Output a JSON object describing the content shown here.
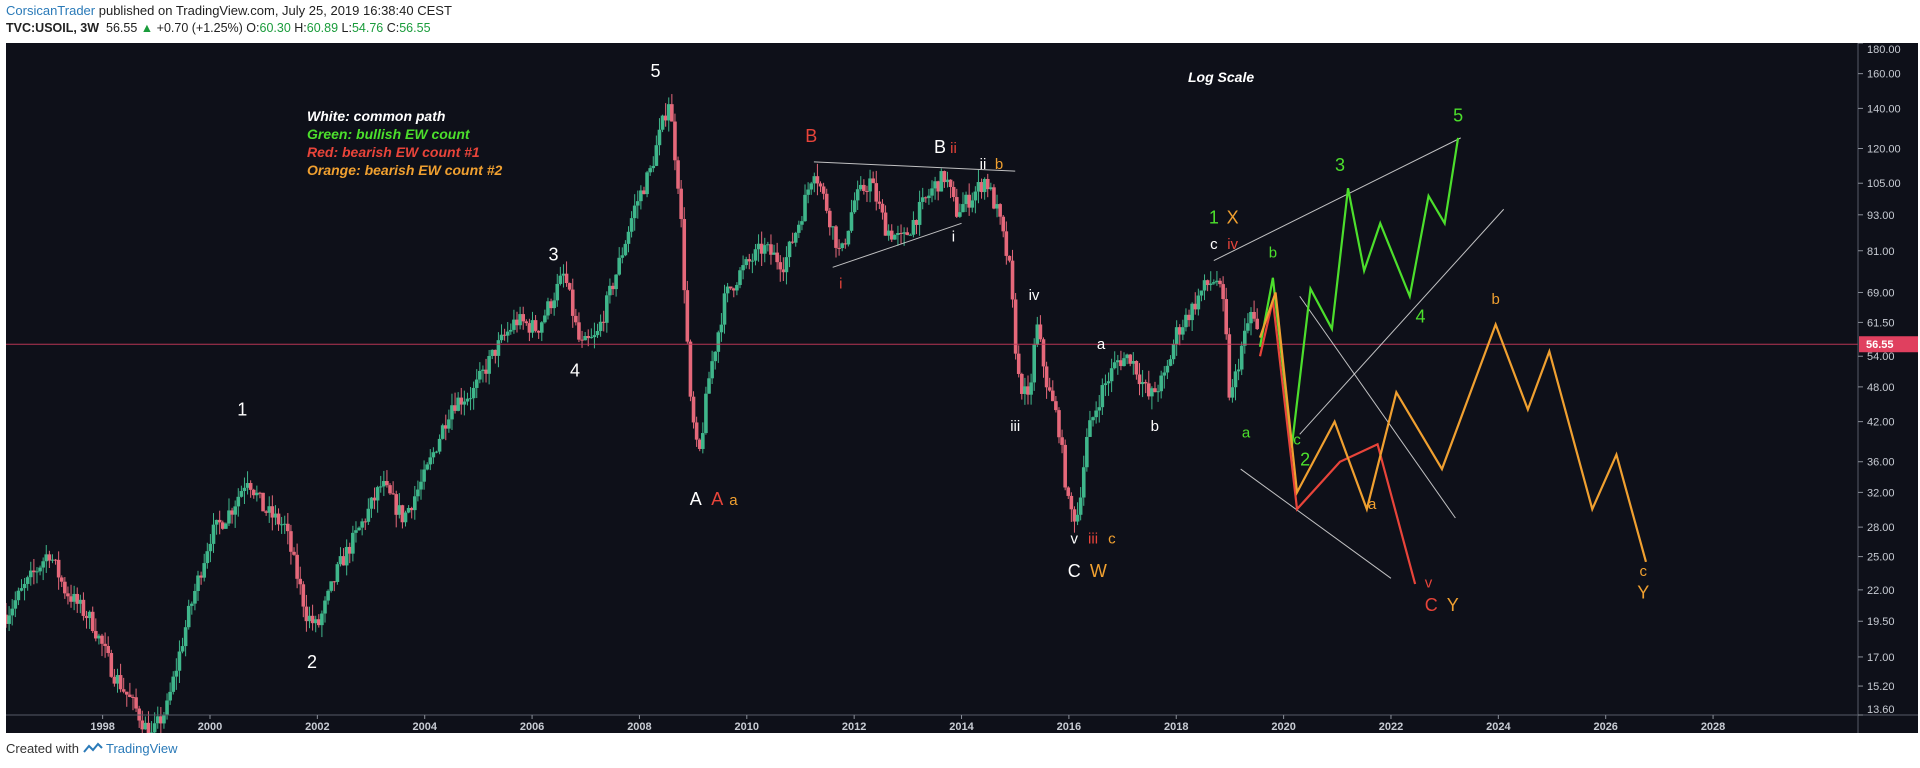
{
  "header": {
    "author": "CorsicanTrader",
    "published_text": "published on TradingView.com, July 25, 2019 16:38:40 CEST",
    "symbol": "TVC:USOIL, 3W",
    "last_price": "56.55",
    "change_arrow": "▲",
    "change": "+0.70 (+1.25%)",
    "open_label": "O:",
    "open": "60.30",
    "high_label": "H:",
    "high": "60.89",
    "low_label": "L:",
    "low": "54.76",
    "close_label": "C:",
    "close": "56.55"
  },
  "footer": {
    "created_with": "Created with",
    "brand": "TradingView"
  },
  "colors": {
    "background": "#0e1019",
    "bull_candle": "#3fb68b",
    "bear_candle": "#e5687a",
    "white": "#ffffff",
    "green": "#4cdf2c",
    "red": "#e8443a",
    "orange": "#f0a030",
    "price_line": "#c9395a"
  },
  "chart_data": {
    "type": "candlestick",
    "interval": "3W",
    "y_scale": "log",
    "ylim": [
      13.6,
      180
    ],
    "xlim": [
      1996.2,
      2030.7
    ],
    "y_ticks": [
      13.6,
      15.2,
      17.0,
      19.5,
      22.0,
      25.0,
      28.0,
      32.0,
      36.0,
      42.0,
      48.0,
      54.0,
      61.5,
      69.0,
      81.0,
      93.0,
      105.0,
      120.0,
      140.0,
      160.0,
      180.0
    ],
    "y_tick_labels": [
      "13.60",
      "15.20",
      "17.00",
      "19.50",
      "22.00",
      "25.00",
      "28.00",
      "32.00",
      "36.00",
      "42.00",
      "48.00",
      "54.00",
      "61.50",
      "69.00",
      "81.00",
      "93.00",
      "105.00",
      "120.00",
      "140.00",
      "160.00",
      "180.00"
    ],
    "x_ticks": [
      1998,
      2000,
      2002,
      2004,
      2006,
      2008,
      2010,
      2012,
      2014,
      2016,
      2018,
      2020,
      2022,
      2024,
      2026,
      2028
    ],
    "x_tick_labels": [
      "1998",
      "2000",
      "2002",
      "2004",
      "2006",
      "2008",
      "2010",
      "2012",
      "2014",
      "2016",
      "2018",
      "2020",
      "2022",
      "2024",
      "2026",
      "2028"
    ],
    "last_price_label": "56.55",
    "last_price": 56.55,
    "scale_note": "Log Scale",
    "legend": [
      {
        "text": "White: common path",
        "color": "#ffffff"
      },
      {
        "text": "Green: bullish EW count",
        "color": "#4cdf2c"
      },
      {
        "text": "Red: bearish EW count #1",
        "color": "#e8443a"
      },
      {
        "text": "Orange: bearish EW count #2",
        "color": "#f0a030"
      }
    ],
    "price_path": [
      [
        1996.2,
        20
      ],
      [
        1996.8,
        24
      ],
      [
        1997.0,
        25.5
      ],
      [
        1997.3,
        22
      ],
      [
        1997.8,
        19.5
      ],
      [
        1998.2,
        16
      ],
      [
        1998.6,
        14
      ],
      [
        1998.9,
        12.5
      ],
      [
        1999.2,
        14
      ],
      [
        1999.6,
        20
      ],
      [
        2000.0,
        27
      ],
      [
        2000.4,
        30
      ],
      [
        2000.7,
        34
      ],
      [
        2001.0,
        30
      ],
      [
        2001.4,
        28
      ],
      [
        2001.8,
        20
      ],
      [
        2002.0,
        19
      ],
      [
        2002.4,
        24
      ],
      [
        2002.8,
        28
      ],
      [
        2003.2,
        33
      ],
      [
        2003.6,
        29
      ],
      [
        2004.0,
        34
      ],
      [
        2004.5,
        45
      ],
      [
        2004.9,
        47
      ],
      [
        2005.3,
        55
      ],
      [
        2005.7,
        62
      ],
      [
        2006.1,
        60
      ],
      [
        2006.6,
        74
      ],
      [
        2006.9,
        56
      ],
      [
        2007.2,
        58
      ],
      [
        2007.6,
        76
      ],
      [
        2007.9,
        95
      ],
      [
        2008.2,
        110
      ],
      [
        2008.55,
        145
      ],
      [
        2008.75,
        100
      ],
      [
        2008.95,
        45
      ],
      [
        2009.1,
        36
      ],
      [
        2009.3,
        50
      ],
      [
        2009.6,
        68
      ],
      [
        2009.9,
        75
      ],
      [
        2010.3,
        82
      ],
      [
        2010.7,
        77
      ],
      [
        2011.0,
        92
      ],
      [
        2011.25,
        112
      ],
      [
        2011.5,
        95
      ],
      [
        2011.75,
        79
      ],
      [
        2012.0,
        98
      ],
      [
        2012.3,
        106
      ],
      [
        2012.6,
        88
      ],
      [
        2012.9,
        84
      ],
      [
        2013.2,
        94
      ],
      [
        2013.5,
        104
      ],
      [
        2013.7,
        108
      ],
      [
        2013.9,
        94
      ],
      [
        2014.2,
        100
      ],
      [
        2014.45,
        107
      ],
      [
        2014.7,
        92
      ],
      [
        2014.9,
        75
      ],
      [
        2015.05,
        50
      ],
      [
        2015.25,
        45
      ],
      [
        2015.4,
        61
      ],
      [
        2015.6,
        48
      ],
      [
        2015.8,
        42
      ],
      [
        2016.0,
        30
      ],
      [
        2016.15,
        29
      ],
      [
        2016.35,
        40
      ],
      [
        2016.6,
        47
      ],
      [
        2016.9,
        53
      ],
      [
        2017.15,
        54
      ],
      [
        2017.5,
        46
      ],
      [
        2017.8,
        50
      ],
      [
        2018.0,
        59
      ],
      [
        2018.3,
        65
      ],
      [
        2018.5,
        70
      ],
      [
        2018.75,
        73
      ],
      [
        2018.9,
        64
      ],
      [
        2019.0,
        45
      ],
      [
        2019.2,
        55
      ],
      [
        2019.4,
        64
      ],
      [
        2019.56,
        56.55
      ]
    ],
    "projections": [
      {
        "color": "#4cdf2c",
        "points": [
          [
            2019.56,
            56
          ],
          [
            2019.8,
            73
          ],
          [
            2020.15,
            38
          ],
          [
            2020.5,
            70
          ],
          [
            2020.9,
            60
          ],
          [
            2021.2,
            103
          ],
          [
            2021.5,
            75
          ],
          [
            2021.8,
            90
          ],
          [
            2022.35,
            68
          ],
          [
            2022.7,
            100
          ],
          [
            2023.0,
            90
          ],
          [
            2023.25,
            125
          ]
        ]
      },
      {
        "color": "#e8443a",
        "points": [
          [
            2019.56,
            54
          ],
          [
            2019.8,
            67
          ],
          [
            2020.25,
            30
          ],
          [
            2021.05,
            36
          ],
          [
            2021.75,
            38.5
          ],
          [
            2022.45,
            22.5
          ]
        ]
      },
      {
        "color": "#f0a030",
        "points": [
          [
            2019.56,
            58
          ],
          [
            2019.85,
            69
          ],
          [
            2020.25,
            32
          ],
          [
            2020.95,
            42
          ],
          [
            2021.55,
            30
          ],
          [
            2022.1,
            47
          ],
          [
            2022.95,
            35
          ],
          [
            2023.95,
            61
          ],
          [
            2024.55,
            44
          ],
          [
            2024.95,
            55
          ],
          [
            2025.75,
            30
          ],
          [
            2026.2,
            37
          ],
          [
            2026.75,
            24.5
          ]
        ]
      }
    ],
    "trend_lines": [
      {
        "color": "#e0e0e0",
        "points": [
          [
            2011.25,
            114
          ],
          [
            2015.0,
            110
          ]
        ]
      },
      {
        "color": "#e0e0e0",
        "points": [
          [
            2011.6,
            76
          ],
          [
            2014.0,
            90
          ]
        ]
      },
      {
        "color": "#e0e0e0",
        "points": [
          [
            2018.7,
            78
          ],
          [
            2023.3,
            125
          ]
        ]
      },
      {
        "color": "#e0e0e0",
        "points": [
          [
            2020.3,
            40
          ],
          [
            2024.1,
            95
          ]
        ]
      },
      {
        "color": "#e0e0e0",
        "points": [
          [
            2019.2,
            35
          ],
          [
            2022.0,
            23
          ]
        ]
      },
      {
        "color": "#e0e0e0",
        "points": [
          [
            2020.3,
            68
          ],
          [
            2023.2,
            29
          ]
        ]
      }
    ],
    "annotations": [
      {
        "text": "1",
        "color": "#ffffff",
        "x": 2000.6,
        "y": 43,
        "size": 18
      },
      {
        "text": "2",
        "color": "#ffffff",
        "x": 2001.9,
        "y": 16.3,
        "size": 18
      },
      {
        "text": "3",
        "color": "#ffffff",
        "x": 2006.4,
        "y": 78,
        "size": 18
      },
      {
        "text": "4",
        "color": "#ffffff",
        "x": 2006.8,
        "y": 50,
        "size": 18
      },
      {
        "text": "5",
        "color": "#ffffff",
        "x": 2008.3,
        "y": 158,
        "size": 18
      },
      {
        "text": "A",
        "color": "#ffffff",
        "x": 2009.05,
        "y": 30.5,
        "size": 18
      },
      {
        "text": "A",
        "color": "#e8443a",
        "x": 2009.45,
        "y": 30.5,
        "size": 18
      },
      {
        "text": "a",
        "color": "#f0a030",
        "x": 2009.75,
        "y": 30.5,
        "size": 15
      },
      {
        "text": "B",
        "color": "#e8443a",
        "x": 2011.2,
        "y": 123,
        "size": 18
      },
      {
        "text": "i",
        "color": "#e8443a",
        "x": 2011.75,
        "y": 70,
        "size": 15
      },
      {
        "text": "B",
        "color": "#ffffff",
        "x": 2013.6,
        "y": 118,
        "size": 18
      },
      {
        "text": "ii",
        "color": "#e8443a",
        "x": 2013.85,
        "y": 118,
        "size": 15
      },
      {
        "text": "ii",
        "color": "#ffffff",
        "x": 2014.4,
        "y": 111,
        "size": 15
      },
      {
        "text": "b",
        "color": "#f0a030",
        "x": 2014.7,
        "y": 111,
        "size": 15
      },
      {
        "text": "i",
        "color": "#ffffff",
        "x": 2013.85,
        "y": 84,
        "size": 15
      },
      {
        "text": "iv",
        "color": "#ffffff",
        "x": 2015.35,
        "y": 67,
        "size": 15
      },
      {
        "text": "iii",
        "color": "#ffffff",
        "x": 2015.0,
        "y": 40.5,
        "size": 15
      },
      {
        "text": "v",
        "color": "#ffffff",
        "x": 2016.1,
        "y": 26.3,
        "size": 15
      },
      {
        "text": "iii",
        "color": "#e8443a",
        "x": 2016.45,
        "y": 26.3,
        "size": 15
      },
      {
        "text": "c",
        "color": "#f0a030",
        "x": 2016.8,
        "y": 26.3,
        "size": 15
      },
      {
        "text": "C",
        "color": "#ffffff",
        "x": 2016.1,
        "y": 23.1,
        "size": 18
      },
      {
        "text": "W",
        "color": "#f0a030",
        "x": 2016.55,
        "y": 23.1,
        "size": 18
      },
      {
        "text": "a",
        "color": "#ffffff",
        "x": 2016.6,
        "y": 55.5,
        "size": 15
      },
      {
        "text": "b",
        "color": "#ffffff",
        "x": 2017.6,
        "y": 40.5,
        "size": 15
      },
      {
        "text": "1",
        "color": "#4cdf2c",
        "x": 2018.7,
        "y": 90,
        "size": 18
      },
      {
        "text": "X",
        "color": "#f0a030",
        "x": 2019.05,
        "y": 90,
        "size": 18
      },
      {
        "text": "c",
        "color": "#ffffff",
        "x": 2018.7,
        "y": 81.5,
        "size": 15
      },
      {
        "text": "iv",
        "color": "#e8443a",
        "x": 2019.05,
        "y": 81.5,
        "size": 15
      },
      {
        "text": "b",
        "color": "#4cdf2c",
        "x": 2019.8,
        "y": 79,
        "size": 15
      },
      {
        "text": "a",
        "color": "#4cdf2c",
        "x": 2019.3,
        "y": 39.5,
        "size": 15
      },
      {
        "text": "c",
        "color": "#4cdf2c",
        "x": 2020.25,
        "y": 38.5,
        "size": 15
      },
      {
        "text": "2",
        "color": "#4cdf2c",
        "x": 2020.4,
        "y": 35.5,
        "size": 18
      },
      {
        "text": "3",
        "color": "#4cdf2c",
        "x": 2021.05,
        "y": 110,
        "size": 18
      },
      {
        "text": "4",
        "color": "#4cdf2c",
        "x": 2022.55,
        "y": 61.5,
        "size": 18
      },
      {
        "text": "5",
        "color": "#4cdf2c",
        "x": 2023.25,
        "y": 133,
        "size": 18
      },
      {
        "text": "a",
        "color": "#f0a030",
        "x": 2021.65,
        "y": 30,
        "size": 15
      },
      {
        "text": "v",
        "color": "#e8443a",
        "x": 2022.7,
        "y": 22.2,
        "size": 15
      },
      {
        "text": "C",
        "color": "#e8443a",
        "x": 2022.75,
        "y": 20.3,
        "size": 18
      },
      {
        "text": "Y",
        "color": "#f0a030",
        "x": 2023.15,
        "y": 20.3,
        "size": 18
      },
      {
        "text": "b",
        "color": "#f0a030",
        "x": 2023.95,
        "y": 66,
        "size": 15
      },
      {
        "text": "c",
        "color": "#f0a030",
        "x": 2026.7,
        "y": 23.2,
        "size": 15
      },
      {
        "text": "Y",
        "color": "#f0a030",
        "x": 2026.7,
        "y": 21.3,
        "size": 18
      }
    ]
  }
}
